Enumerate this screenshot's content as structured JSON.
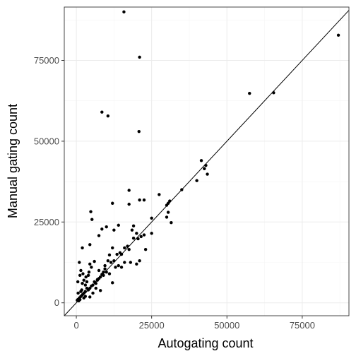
{
  "chart_data": {
    "type": "scatter",
    "title": "",
    "xlabel": "Autogating count",
    "ylabel": "Manual gating count",
    "xlim": [
      -4000,
      90500
    ],
    "ylim": [
      -4000,
      91500
    ],
    "x_ticks": [
      0,
      25000,
      50000,
      75000
    ],
    "y_ticks": [
      0,
      25000,
      50000,
      75000
    ],
    "x_tick_labels": [
      "0",
      "25000",
      "50000",
      "75000"
    ],
    "y_tick_labels": [
      "0",
      "25000",
      "50000",
      "75000"
    ],
    "grid": true,
    "legend": "none",
    "reference_line": "y = x",
    "point_color": "#000000",
    "frame_color": "#333333",
    "grid_major_color": "#ebebeb",
    "grid_minor_color": "#f5f5f5",
    "points": [
      [
        15800,
        90000
      ],
      [
        21000,
        76000
      ],
      [
        8500,
        59000
      ],
      [
        10500,
        57800
      ],
      [
        20800,
        53000
      ],
      [
        87000,
        82800
      ],
      [
        57500,
        64800
      ],
      [
        65500,
        65000
      ],
      [
        41500,
        44000
      ],
      [
        42500,
        41500
      ],
      [
        43000,
        42500
      ],
      [
        43500,
        39800
      ],
      [
        40000,
        37800
      ],
      [
        35000,
        35000
      ],
      [
        31000,
        31500
      ],
      [
        30500,
        30800
      ],
      [
        30000,
        30200
      ],
      [
        27500,
        33500
      ],
      [
        21000,
        31800
      ],
      [
        22500,
        31800
      ],
      [
        17500,
        34800
      ],
      [
        17500,
        30500
      ],
      [
        30500,
        28000
      ],
      [
        30000,
        26500
      ],
      [
        31500,
        24800
      ],
      [
        25000,
        26200
      ],
      [
        25000,
        21500
      ],
      [
        12000,
        30800
      ],
      [
        4800,
        28200
      ],
      [
        5200,
        25800
      ],
      [
        8500,
        22800
      ],
      [
        10000,
        23500
      ],
      [
        12500,
        22500
      ],
      [
        14000,
        24000
      ],
      [
        19000,
        23800
      ],
      [
        18500,
        22500
      ],
      [
        20000,
        21500
      ],
      [
        20500,
        19800
      ],
      [
        21500,
        20500
      ],
      [
        22500,
        21000
      ],
      [
        19000,
        20000
      ],
      [
        23000,
        16500
      ],
      [
        16000,
        17000
      ],
      [
        17000,
        17500
      ],
      [
        17500,
        16500
      ],
      [
        15000,
        15000
      ],
      [
        14500,
        15500
      ],
      [
        13500,
        15000
      ],
      [
        12000,
        17000
      ],
      [
        11000,
        14800
      ],
      [
        7500,
        20800
      ],
      [
        4500,
        18000
      ],
      [
        2000,
        17000
      ],
      [
        10500,
        13000
      ],
      [
        11500,
        12500
      ],
      [
        12500,
        13000
      ],
      [
        13000,
        11000
      ],
      [
        14000,
        11500
      ],
      [
        15000,
        11000
      ],
      [
        16000,
        12500
      ],
      [
        18000,
        12500
      ],
      [
        20000,
        12000
      ],
      [
        21000,
        13000
      ],
      [
        9500,
        10500
      ],
      [
        10000,
        9500
      ],
      [
        11000,
        9000
      ],
      [
        9000,
        8500
      ],
      [
        8000,
        8000
      ],
      [
        7500,
        7500
      ],
      [
        7000,
        7000
      ],
      [
        6500,
        6000
      ],
      [
        6000,
        6500
      ],
      [
        5500,
        5500
      ],
      [
        5000,
        5200
      ],
      [
        4500,
        4500
      ],
      [
        4000,
        4000
      ],
      [
        3500,
        4500
      ],
      [
        3000,
        3500
      ],
      [
        2500,
        3000
      ],
      [
        2000,
        2500
      ],
      [
        1500,
        2000
      ],
      [
        1000,
        1500
      ],
      [
        500,
        1000
      ],
      [
        300,
        800
      ],
      [
        800,
        600
      ],
      [
        1200,
        1000
      ],
      [
        1500,
        3500
      ],
      [
        1800,
        4000
      ],
      [
        2000,
        6000
      ],
      [
        2500,
        7000
      ],
      [
        3000,
        5500
      ],
      [
        3500,
        6500
      ],
      [
        4000,
        8500
      ],
      [
        4200,
        9500
      ],
      [
        4500,
        12000
      ],
      [
        5000,
        11000
      ],
      [
        6000,
        12800
      ],
      [
        7000,
        7200
      ],
      [
        7500,
        10000
      ],
      [
        8500,
        8800
      ],
      [
        9000,
        9500
      ],
      [
        9500,
        11500
      ],
      [
        1000,
        12500
      ],
      [
        1500,
        10000
      ],
      [
        500,
        6500
      ],
      [
        2500,
        1500
      ],
      [
        3000,
        2000
      ],
      [
        4500,
        1800
      ],
      [
        5500,
        3000
      ],
      [
        6500,
        4500
      ],
      [
        8000,
        3800
      ],
      [
        12000,
        6200
      ],
      [
        1200,
        8500
      ],
      [
        2200,
        9000
      ],
      [
        3200,
        8000
      ],
      [
        600,
        3000
      ]
    ]
  }
}
